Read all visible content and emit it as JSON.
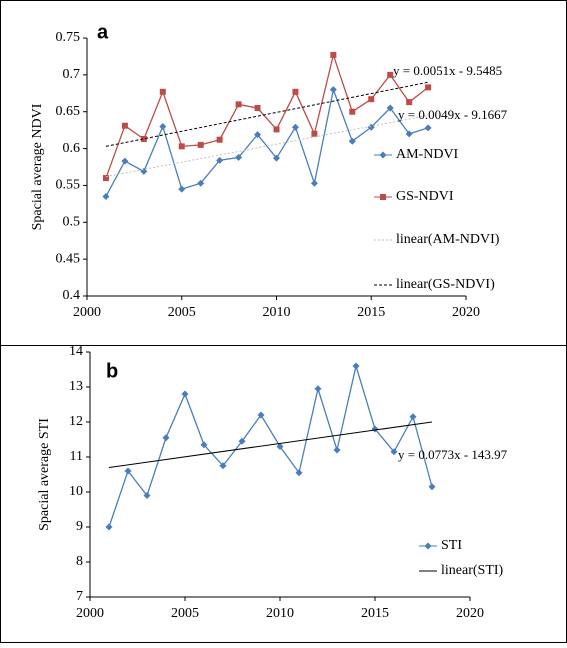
{
  "chart_data": [
    {
      "type": "line",
      "panel_label": "a",
      "y_label": "Spacial average NDVI",
      "xlim": [
        2000,
        2020
      ],
      "xticks": [
        2000,
        2005,
        2010,
        2015,
        2020
      ],
      "ylim": [
        0.4,
        0.75
      ],
      "yticks": [
        0.4,
        0.45,
        0.5,
        0.55,
        0.6,
        0.65,
        0.7,
        0.75
      ],
      "annotations": [
        "y = 0.0051x - 9.5485",
        "y = 0.0049x - 9.1667"
      ],
      "series": [
        {
          "name": "AM-NDVI",
          "color": "#4a7ebb",
          "marker": "diamond",
          "dash": "none",
          "x": [
            2001,
            2002,
            2003,
            2004,
            2005,
            2006,
            2007,
            2008,
            2009,
            2010,
            2011,
            2012,
            2013,
            2014,
            2015,
            2016,
            2017,
            2018
          ],
          "values": [
            0.535,
            0.583,
            0.569,
            0.63,
            0.545,
            0.553,
            0.584,
            0.588,
            0.619,
            0.587,
            0.629,
            0.553,
            0.68,
            0.61,
            0.629,
            0.655,
            0.62,
            0.628
          ]
        },
        {
          "name": "GS-NDVI",
          "color": "#be4b48",
          "marker": "square",
          "dash": "none",
          "x": [
            2001,
            2002,
            2003,
            2004,
            2005,
            2006,
            2007,
            2008,
            2009,
            2010,
            2011,
            2012,
            2013,
            2014,
            2015,
            2016,
            2017,
            2018
          ],
          "values": [
            0.56,
            0.631,
            0.613,
            0.677,
            0.603,
            0.605,
            0.612,
            0.66,
            0.655,
            0.626,
            0.677,
            0.62,
            0.727,
            0.65,
            0.667,
            0.7,
            0.663,
            0.683
          ]
        },
        {
          "name": "linear(AM-NDVI)",
          "color": "#bfbfbf",
          "marker": "none",
          "dash": "2 2",
          "x": [
            2001,
            2018
          ],
          "values": [
            0.562,
            0.645
          ]
        },
        {
          "name": "linear(GS-NDVI)",
          "color": "#000000",
          "marker": "none",
          "dash": "3 2",
          "x": [
            2001,
            2018
          ],
          "values": [
            0.603,
            0.69
          ]
        }
      ]
    },
    {
      "type": "line",
      "panel_label": "b",
      "y_label": "Spacial average STI",
      "xlim": [
        2000,
        2020
      ],
      "xticks": [
        2000,
        2005,
        2010,
        2015,
        2020
      ],
      "ylim": [
        7,
        14
      ],
      "yticks": [
        7,
        8,
        9,
        10,
        11,
        12,
        13,
        14
      ],
      "annotations": [
        "y = 0.0773x - 143.97"
      ],
      "series": [
        {
          "name": "STI",
          "color": "#4a7ebb",
          "marker": "diamond",
          "dash": "none",
          "x": [
            2001,
            2002,
            2003,
            2004,
            2005,
            2006,
            2007,
            2008,
            2009,
            2010,
            2011,
            2012,
            2013,
            2014,
            2015,
            2016,
            2017,
            2018
          ],
          "values": [
            9.0,
            10.6,
            9.9,
            11.55,
            12.8,
            11.35,
            10.75,
            11.45,
            12.2,
            11.3,
            10.55,
            12.95,
            11.2,
            13.6,
            11.8,
            11.15,
            12.15,
            10.15
          ]
        },
        {
          "name": "linear(STI)",
          "color": "#000000",
          "marker": "none",
          "dash": "none",
          "x": [
            2001,
            2018
          ],
          "values": [
            10.7,
            12.0
          ]
        }
      ]
    }
  ]
}
